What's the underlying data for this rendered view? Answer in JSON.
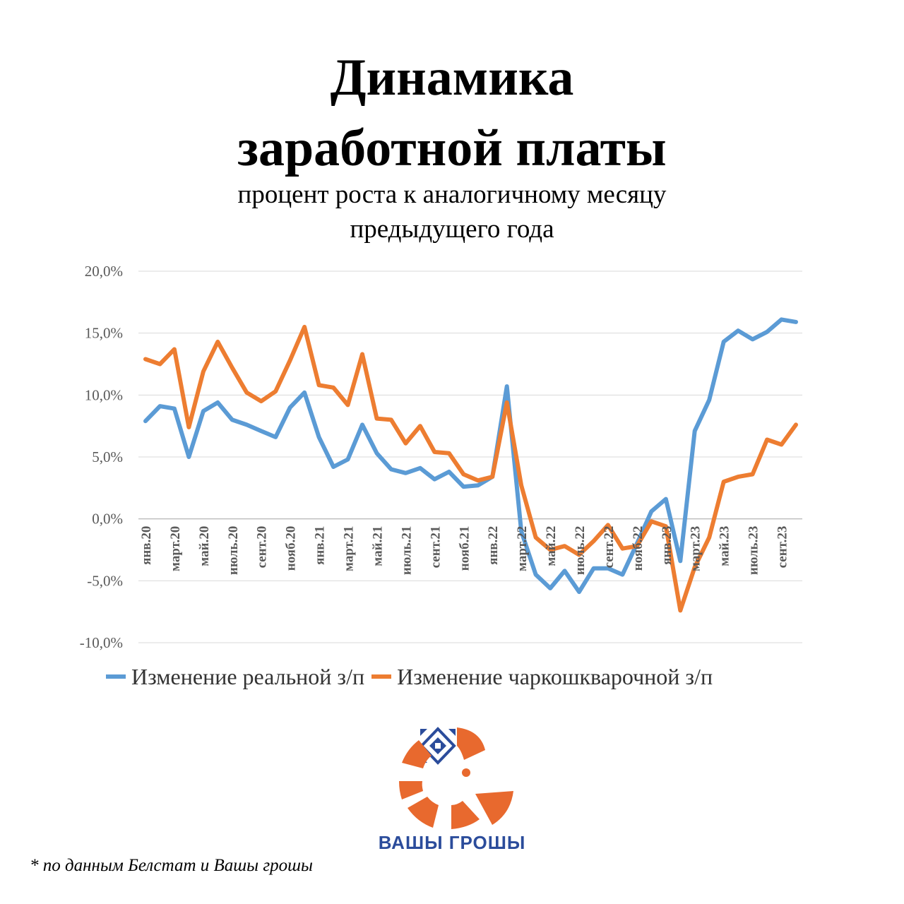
{
  "header": {
    "title_line1": "Динамика",
    "title_line2": "заработной платы",
    "subtitle_line1": "процент роста к аналогичному месяцу",
    "subtitle_line2": "предыдущего года"
  },
  "footnote": "* по данным Белстат и Вашы грошы",
  "brand": {
    "name": "ВАШЫ ГРОШЫ",
    "logo_icon": "orange-segmented-circle-logo-icon",
    "accent": "#e8692e",
    "pattern_color": "#2b4c9b"
  },
  "chart_data": {
    "type": "line",
    "title": "Динамика заработной платы",
    "subtitle": "процент роста к аналогичному месяцу предыдущего года",
    "ylim": [
      -10,
      20
    ],
    "yticks": [
      20,
      15,
      10,
      5,
      0,
      -5,
      -10
    ],
    "ytick_labels": [
      "20,0%",
      "15,0%",
      "10,0%",
      "5,0%",
      "0,0%",
      "-5,0%",
      "-10,0%"
    ],
    "grid": true,
    "legend_position": "bottom",
    "x_tick_labels": [
      "янв.20",
      "март.20",
      "май.20",
      "июль.20",
      "сент.20",
      "нояб.20",
      "янв.21",
      "март.21",
      "май.21",
      "июль.21",
      "сент.21",
      "нояб.21",
      "янв.22",
      "март.22",
      "май.22",
      "июль.22",
      "сент.22",
      "нояб.22",
      "янв.23",
      "март.23",
      "май.23",
      "июль.23",
      "сент.23"
    ],
    "x_tick_every": 2,
    "series": [
      {
        "name": "Изменение реальной з/п",
        "color": "#5b9bd5",
        "values": [
          7.9,
          9.1,
          8.9,
          5.0,
          8.7,
          9.4,
          8.0,
          7.6,
          7.1,
          6.6,
          9.0,
          10.2,
          6.6,
          4.2,
          4.8,
          7.6,
          5.3,
          4.0,
          3.7,
          4.1,
          3.2,
          3.8,
          2.6,
          2.7,
          3.4,
          10.7,
          -1.0,
          -4.5,
          -5.6,
          -4.2,
          -5.9,
          -4.0,
          -4.0,
          -4.5,
          -2.0,
          0.6,
          1.6,
          -3.4,
          7.1,
          9.6,
          14.3,
          15.2,
          14.5,
          15.1,
          16.1,
          15.9
        ]
      },
      {
        "name": "Изменение чаркошкварочной з/п",
        "color": "#ed7d31",
        "values": [
          12.9,
          12.5,
          13.7,
          7.4,
          11.9,
          14.3,
          12.2,
          10.2,
          9.5,
          10.3,
          12.8,
          15.5,
          10.8,
          10.6,
          9.2,
          13.3,
          8.1,
          8.0,
          6.1,
          7.5,
          5.4,
          5.3,
          3.6,
          3.1,
          3.4,
          9.4,
          2.7,
          -1.5,
          -2.5,
          -2.2,
          -2.9,
          -1.8,
          -0.5,
          -2.4,
          -2.2,
          -0.2,
          -0.6,
          -7.4,
          -3.9,
          -1.5,
          3.0,
          3.4,
          3.6,
          6.4,
          6.0,
          7.6
        ]
      }
    ]
  }
}
